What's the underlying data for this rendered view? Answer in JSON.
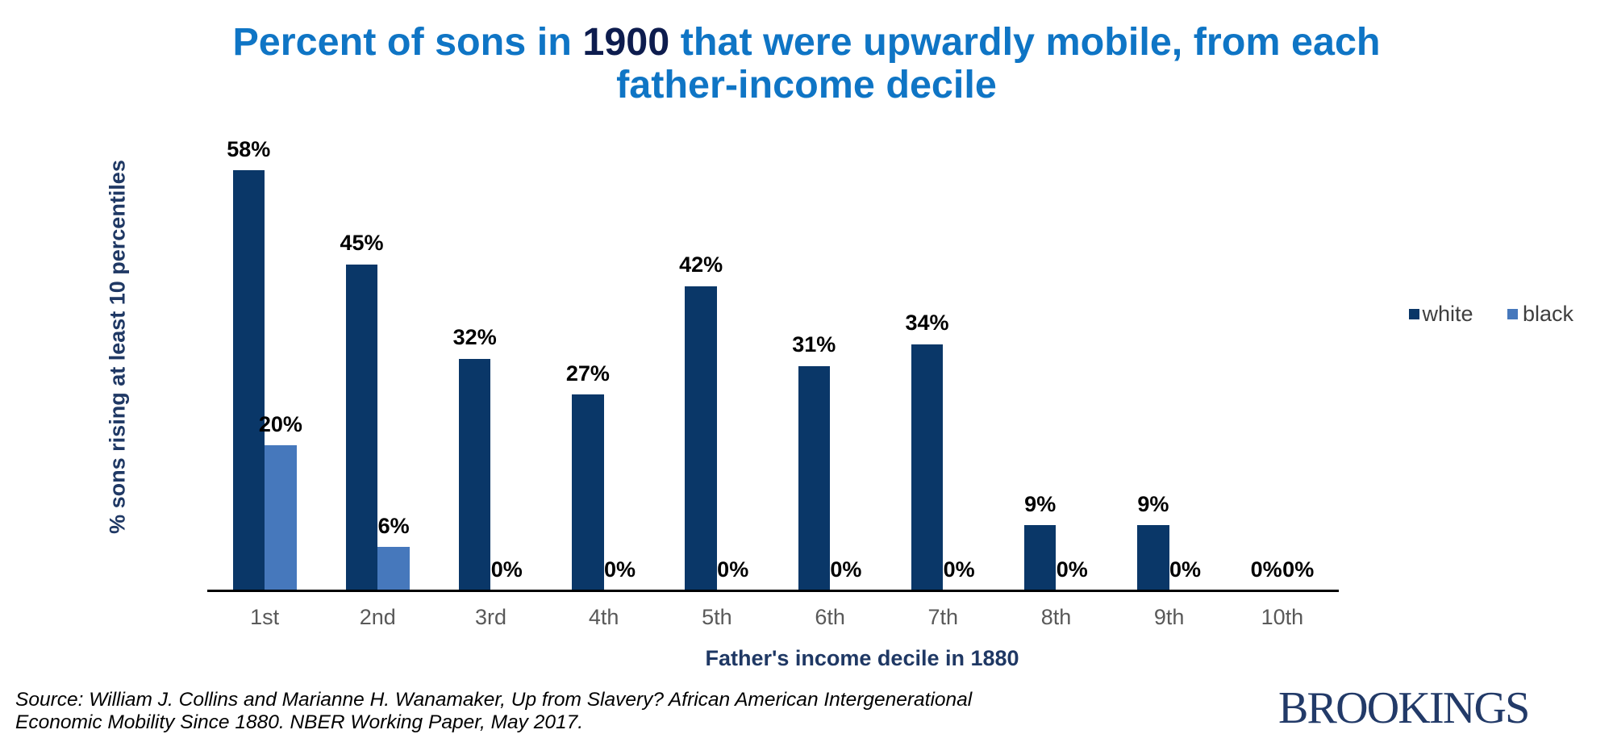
{
  "title": {
    "line1_pre": "Percent of sons in ",
    "line1_year": "1900",
    "line1_post": " that were upwardly mobile, from each",
    "line2": "father-income decile"
  },
  "chart_data": {
    "type": "bar",
    "categories": [
      "1st",
      "2nd",
      "3rd",
      "4th",
      "5th",
      "6th",
      "7th",
      "8th",
      "9th",
      "10th"
    ],
    "series": [
      {
        "name": "white",
        "color": "#0A3768",
        "values": [
          58,
          45,
          32,
          27,
          42,
          31,
          34,
          9,
          9,
          0
        ]
      },
      {
        "name": "black",
        "color": "#4678BC",
        "values": [
          20,
          6,
          0,
          0,
          0,
          0,
          0,
          0,
          0,
          0
        ]
      }
    ],
    "title": "Percent of sons in 1900 that were upwardly mobile, from each father-income decile",
    "xlabel": "Father's income decile in 1880",
    "ylabel": "% sons rising at least 10 percentiles",
    "ylim": [
      0,
      60
    ],
    "grid": false,
    "legend_position": "right",
    "data_labels": true,
    "data_label_format": "{value}%"
  },
  "source": {
    "line1": "Source: William J. Collins and Marianne H. Wanamaker, Up from Slavery? African American Intergenerational",
    "line2": "Economic Mobility Since 1880. NBER Working Paper, May 2017."
  },
  "brand": "BROOKINGS",
  "colors": {
    "title_blue": "#0F75C5",
    "title_navy": "#0D1C4E",
    "axis_navy": "#1F3864",
    "tick_gray": "#595959",
    "legend_gray": "#3F3F3F",
    "label_black": "#000000",
    "source_black": "#000000",
    "brand_navy": "#223A68",
    "axis_line": "#000000",
    "bar_white_series": "#0A3768",
    "bar_black_series": "#4678BC"
  }
}
